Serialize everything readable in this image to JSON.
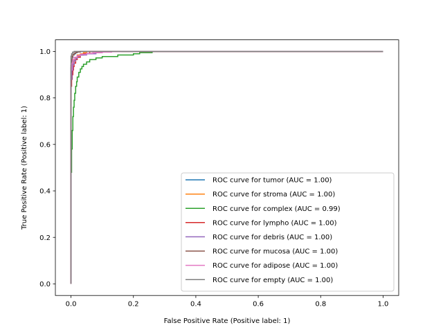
{
  "chart_data": {
    "type": "line",
    "title": "",
    "xlabel": "False Positive Rate (Positive label: 1)",
    "ylabel": "True Positive Rate (Positive label: 1)",
    "xlim": [
      -0.05,
      1.05
    ],
    "ylim": [
      -0.05,
      1.05
    ],
    "xticks": [
      0.0,
      0.2,
      0.4,
      0.6,
      0.8,
      1.0
    ],
    "yticks": [
      0.0,
      0.2,
      0.4,
      0.6,
      0.8,
      1.0
    ],
    "xtick_labels": [
      "0.0",
      "0.2",
      "0.4",
      "0.6",
      "0.8",
      "1.0"
    ],
    "ytick_labels": [
      "0.0",
      "0.2",
      "0.4",
      "0.6",
      "0.8",
      "1.0"
    ],
    "grid": false,
    "legend_position": "lower-right",
    "series": [
      {
        "name": "ROC curve for tumor (AUC = 1.00)",
        "color": "#1f77b4",
        "x": [
          0,
          0,
          0.002,
          0.004,
          0.006,
          0.01,
          0.015,
          0.02,
          0.03,
          1.0
        ],
        "y": [
          0,
          0.93,
          0.96,
          0.975,
          0.985,
          0.99,
          0.995,
          0.998,
          1.0,
          1.0
        ]
      },
      {
        "name": "ROC curve for stroma (AUC = 1.00)",
        "color": "#ff7f0e",
        "x": [
          0,
          0,
          0.003,
          0.006,
          0.01,
          0.015,
          0.02,
          0.03,
          0.04,
          0.05,
          1.0
        ],
        "y": [
          0,
          0.9,
          0.94,
          0.955,
          0.965,
          0.975,
          0.985,
          0.99,
          0.995,
          1.0,
          1.0
        ]
      },
      {
        "name": "ROC curve for complex (AUC = 0.99)",
        "color": "#2ca02c",
        "x": [
          0,
          0,
          0.002,
          0.004,
          0.006,
          0.008,
          0.01,
          0.012,
          0.015,
          0.018,
          0.02,
          0.025,
          0.03,
          0.035,
          0.04,
          0.05,
          0.06,
          0.08,
          0.1,
          0.15,
          0.2,
          0.22,
          0.26,
          1.0
        ],
        "y": [
          0,
          0.48,
          0.58,
          0.66,
          0.72,
          0.76,
          0.79,
          0.82,
          0.85,
          0.87,
          0.89,
          0.91,
          0.925,
          0.935,
          0.945,
          0.955,
          0.965,
          0.972,
          0.978,
          0.985,
          0.99,
          0.995,
          1.0,
          1.0
        ]
      },
      {
        "name": "ROC curve for lympho (AUC = 1.00)",
        "color": "#d62728",
        "x": [
          0,
          0,
          0.002,
          0.004,
          0.006,
          0.008,
          0.01,
          0.015,
          0.02,
          0.03,
          0.04,
          0.06,
          1.0
        ],
        "y": [
          0,
          0.85,
          0.88,
          0.9,
          0.92,
          0.935,
          0.95,
          0.965,
          0.975,
          0.985,
          0.99,
          1.0,
          1.0
        ]
      },
      {
        "name": "ROC curve for debris (AUC = 1.00)",
        "color": "#9467bd",
        "x": [
          0,
          0,
          0.003,
          0.006,
          0.01,
          0.015,
          0.02,
          0.03,
          0.05,
          0.08,
          0.1,
          1.0
        ],
        "y": [
          0,
          0.88,
          0.92,
          0.945,
          0.96,
          0.97,
          0.98,
          0.985,
          0.99,
          0.995,
          1.0,
          1.0
        ]
      },
      {
        "name": "ROC curve for mucosa (AUC = 1.00)",
        "color": "#8c564b",
        "x": [
          0,
          0,
          0.002,
          0.004,
          0.006,
          0.01,
          0.015,
          0.02,
          0.03,
          1.0
        ],
        "y": [
          0,
          0.94,
          0.965,
          0.978,
          0.986,
          0.992,
          0.996,
          0.998,
          1.0,
          1.0
        ]
      },
      {
        "name": "ROC curve for adipose (AUC = 1.00)",
        "color": "#e377c2",
        "x": [
          0,
          0,
          0.003,
          0.006,
          0.01,
          0.02,
          0.03,
          0.05,
          0.07,
          0.1,
          0.13,
          0.16,
          1.0
        ],
        "y": [
          0,
          0.92,
          0.95,
          0.965,
          0.975,
          0.982,
          0.988,
          0.992,
          0.995,
          0.997,
          0.999,
          1.0,
          1.0
        ]
      },
      {
        "name": "ROC curve for empty (AUC = 1.00)",
        "color": "#7f7f7f",
        "x": [
          0,
          0,
          0.002,
          0.005,
          0.01,
          1.0
        ],
        "y": [
          0,
          0.98,
          0.99,
          0.997,
          1.0,
          1.0
        ]
      }
    ]
  }
}
